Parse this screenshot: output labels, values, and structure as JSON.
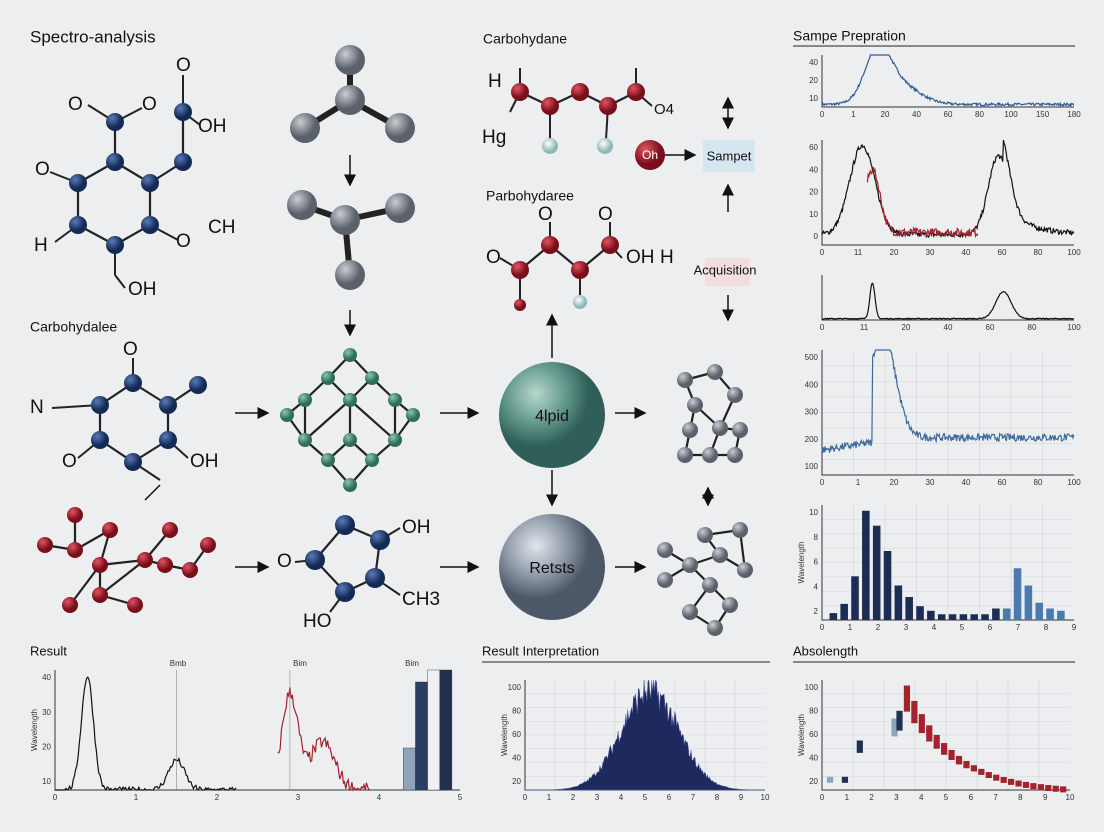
{
  "sections": {
    "spectro": "Spectro-analysis",
    "carbohydane": "Carbohydane",
    "sample_prep": "Sampe Prepration",
    "carbohydalee": "Carbohydalee",
    "parbohydaree": "Parbohydaree",
    "result": "Result",
    "result_interpretation": "Result Interpretation",
    "absolength": "Absolength"
  },
  "nodes": {
    "oh": "Oh",
    "sampet": "Sampet",
    "acquisition": "Acquisition",
    "lipid": "4lpid",
    "retsts": "Retsts"
  },
  "atoms": [
    "O",
    "O",
    "O",
    "OH",
    "O",
    "O",
    "CH",
    "H",
    "OH",
    "H",
    "Hg",
    "O4",
    "O",
    "O",
    "OH",
    "H",
    "O",
    "O",
    "N",
    "O",
    "OH",
    "O",
    "OH",
    "CH3",
    "HO"
  ],
  "charts": [
    {
      "xticks": [
        0,
        1,
        20,
        40,
        60,
        80,
        100,
        150,
        180
      ],
      "yticks": [
        40,
        20,
        10
      ]
    },
    {
      "xticks": [
        0,
        11,
        20,
        30,
        40,
        60,
        80,
        100
      ],
      "yticks": [
        60,
        40,
        20,
        10,
        0
      ]
    },
    {
      "xticks": [
        0,
        11,
        20,
        40,
        60,
        80,
        100
      ]
    },
    {
      "xticks": [
        0,
        1,
        20,
        30,
        40,
        60,
        80,
        100
      ],
      "yticks": [
        500,
        400,
        300,
        200,
        100
      ]
    },
    {
      "xticks": [
        0,
        1,
        2,
        3,
        4,
        5,
        6,
        7,
        8,
        9
      ],
      "yticks": [
        10,
        8,
        6,
        4,
        2
      ],
      "ylabel": "Wavelength"
    },
    {
      "xticks": [
        0,
        1,
        2,
        3,
        4,
        5
      ],
      "yticks": [
        40,
        30,
        20,
        10
      ],
      "ylabel": "Wavelength",
      "labels": [
        "Bmb",
        "Bim",
        "Bim"
      ]
    },
    {
      "xticks": [
        0,
        1,
        2,
        3,
        4,
        5,
        6,
        7,
        8,
        9,
        10
      ],
      "yticks": [
        100,
        80,
        60,
        40,
        20
      ],
      "ylabel": "Wavelength"
    },
    {
      "xticks": [
        0,
        1,
        2,
        3,
        4,
        5,
        6,
        7,
        8,
        9,
        10
      ],
      "yticks": [
        100,
        80,
        60,
        40,
        20
      ],
      "ylabel": "Wavelength"
    }
  ]
}
